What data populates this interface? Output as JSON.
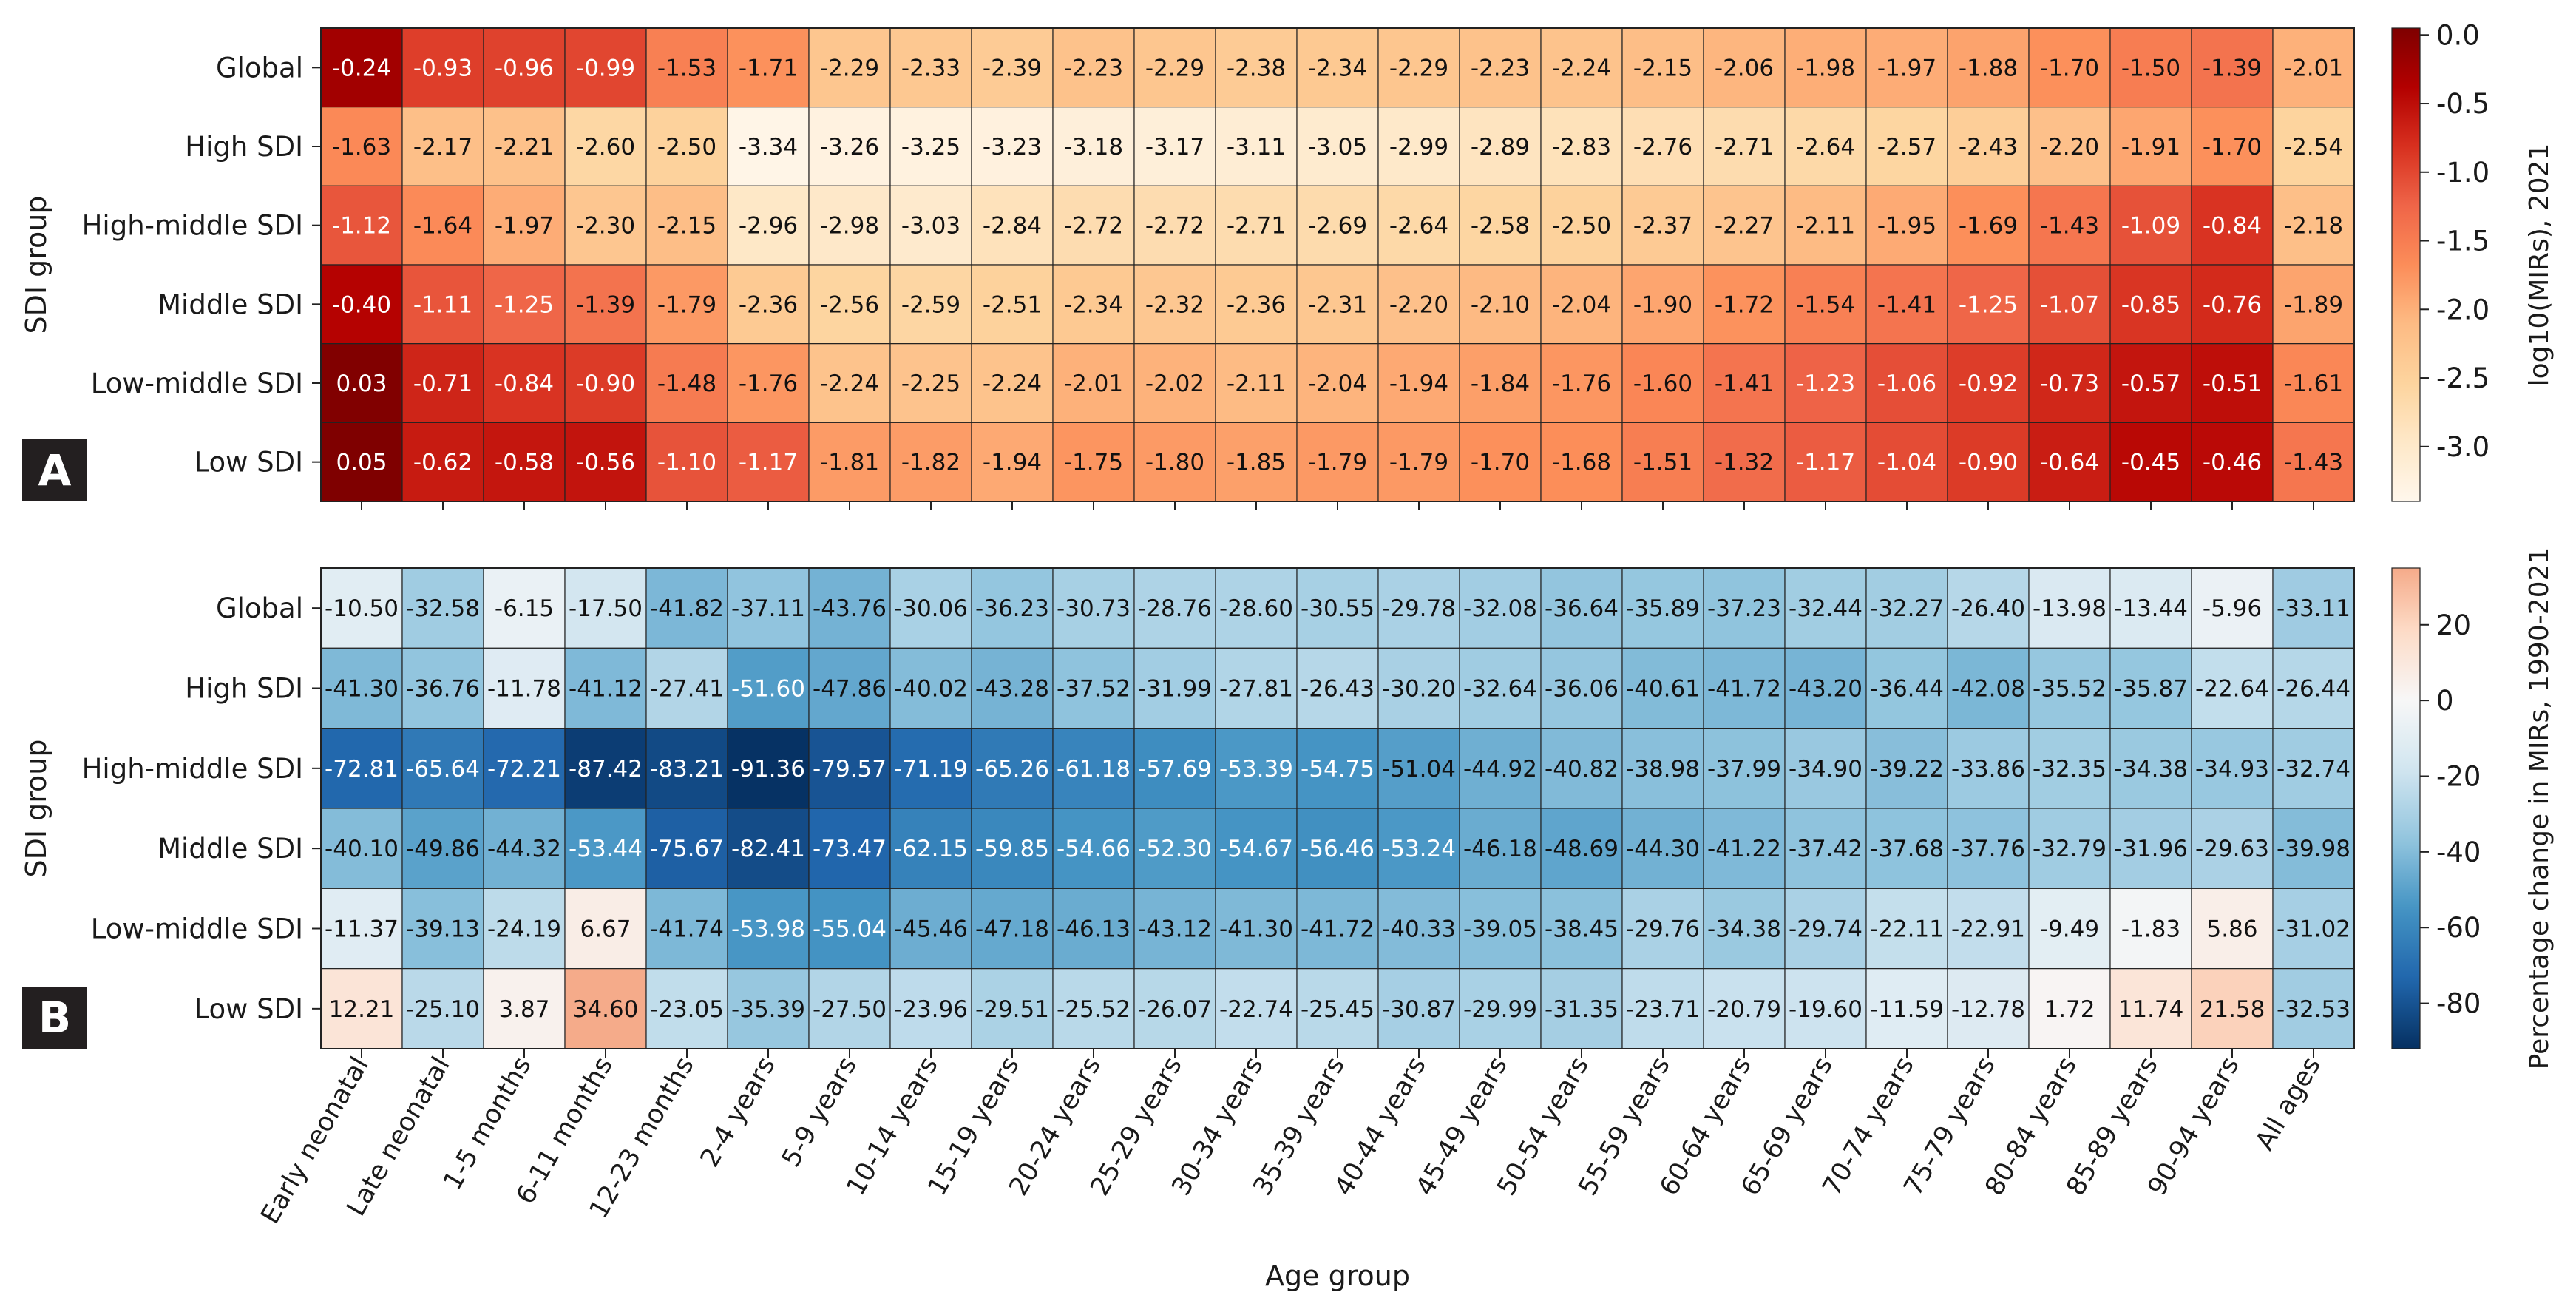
{
  "figure": {
    "xlabel": "Age group",
    "ylabel": "SDI group",
    "row_labels": [
      "Global",
      "High SDI",
      "High-middle SDI",
      "Middle SDI",
      "Low-middle SDI",
      "Low SDI"
    ],
    "col_labels": [
      "Early neonatal",
      "Late neonatal",
      "1-5 months",
      "6-11 months",
      "12-23 months",
      "2-4 years",
      "5-9 years",
      "10-14 years",
      "15-19 years",
      "20-24 years",
      "25-29 years",
      "30-34 years",
      "35-39 years",
      "40-44 years",
      "45-49 years",
      "50-54 years",
      "55-59 years",
      "60-64 years",
      "65-69 years",
      "70-74 years",
      "75-79 years",
      "80-84 years",
      "85-89 years",
      "90-94 years",
      "All ages"
    ]
  },
  "chart_data": [
    {
      "type": "heatmap",
      "panel_label": "A",
      "colorbar_label": "log10(MIRs), 2021",
      "colormap": "OrRd",
      "colorbar_ticks": [
        "0.0",
        "-0.5",
        "-1.0",
        "-1.5",
        "-2.0",
        "-2.5",
        "-3.0"
      ],
      "vmin": -3.4,
      "vmax": 0.05,
      "values": [
        [
          "-0.24",
          "-0.93",
          "-0.96",
          "-0.99",
          "-1.53",
          "-1.71",
          "-2.29",
          "-2.33",
          "-2.39",
          "-2.23",
          "-2.29",
          "-2.38",
          "-2.34",
          "-2.29",
          "-2.23",
          "-2.24",
          "-2.15",
          "-2.06",
          "-1.98",
          "-1.97",
          "-1.88",
          "-1.70",
          "-1.50",
          "-1.39",
          "-2.01"
        ],
        [
          "-1.63",
          "-2.17",
          "-2.21",
          "-2.60",
          "-2.50",
          "-3.34",
          "-3.26",
          "-3.25",
          "-3.23",
          "-3.18",
          "-3.17",
          "-3.11",
          "-3.05",
          "-2.99",
          "-2.89",
          "-2.83",
          "-2.76",
          "-2.71",
          "-2.64",
          "-2.57",
          "-2.43",
          "-2.20",
          "-1.91",
          "-1.70",
          "-2.54"
        ],
        [
          "-1.12",
          "-1.64",
          "-1.97",
          "-2.30",
          "-2.15",
          "-2.96",
          "-2.98",
          "-3.03",
          "-2.84",
          "-2.72",
          "-2.72",
          "-2.71",
          "-2.69",
          "-2.64",
          "-2.58",
          "-2.50",
          "-2.37",
          "-2.27",
          "-2.11",
          "-1.95",
          "-1.69",
          "-1.43",
          "-1.09",
          "-0.84",
          "-2.18"
        ],
        [
          "-0.40",
          "-1.11",
          "-1.25",
          "-1.39",
          "-1.79",
          "-2.36",
          "-2.56",
          "-2.59",
          "-2.51",
          "-2.34",
          "-2.32",
          "-2.36",
          "-2.31",
          "-2.20",
          "-2.10",
          "-2.04",
          "-1.90",
          "-1.72",
          "-1.54",
          "-1.41",
          "-1.25",
          "-1.07",
          "-0.85",
          "-0.76",
          "-1.89"
        ],
        [
          "0.03",
          "-0.71",
          "-0.84",
          "-0.90",
          "-1.48",
          "-1.76",
          "-2.24",
          "-2.25",
          "-2.24",
          "-2.01",
          "-2.02",
          "-2.11",
          "-2.04",
          "-1.94",
          "-1.84",
          "-1.76",
          "-1.60",
          "-1.41",
          "-1.23",
          "-1.06",
          "-0.92",
          "-0.73",
          "-0.57",
          "-0.51",
          "-1.61"
        ],
        [
          "0.05",
          "-0.62",
          "-0.58",
          "-0.56",
          "-1.10",
          "-1.17",
          "-1.81",
          "-1.82",
          "-1.94",
          "-1.75",
          "-1.80",
          "-1.85",
          "-1.79",
          "-1.79",
          "-1.70",
          "-1.68",
          "-1.51",
          "-1.32",
          "-1.17",
          "-1.04",
          "-0.90",
          "-0.64",
          "-0.45",
          "-0.46",
          "-1.43"
        ]
      ]
    },
    {
      "type": "heatmap",
      "panel_label": "B",
      "colorbar_label": "Percentage change in MIRs, 1990-2021",
      "colormap": "RdBu_r",
      "colorbar_ticks": [
        "20",
        "0",
        "-20",
        "-40",
        "-60",
        "-80"
      ],
      "vmin": -92,
      "vmax": 35,
      "center": 0,
      "values": [
        [
          "-10.50",
          "-32.58",
          "-6.15",
          "-17.50",
          "-41.82",
          "-37.11",
          "-43.76",
          "-30.06",
          "-36.23",
          "-30.73",
          "-28.76",
          "-28.60",
          "-30.55",
          "-29.78",
          "-32.08",
          "-36.64",
          "-35.89",
          "-37.23",
          "-32.44",
          "-32.27",
          "-26.40",
          "-13.98",
          "-13.44",
          "-5.96",
          "-33.11"
        ],
        [
          "-41.30",
          "-36.76",
          "-11.78",
          "-41.12",
          "-27.41",
          "-51.60",
          "-47.86",
          "-40.02",
          "-43.28",
          "-37.52",
          "-31.99",
          "-27.81",
          "-26.43",
          "-30.20",
          "-32.64",
          "-36.06",
          "-40.61",
          "-41.72",
          "-43.20",
          "-36.44",
          "-42.08",
          "-35.52",
          "-35.87",
          "-22.64",
          "-26.44"
        ],
        [
          "-72.81",
          "-65.64",
          "-72.21",
          "-87.42",
          "-83.21",
          "-91.36",
          "-79.57",
          "-71.19",
          "-65.26",
          "-61.18",
          "-57.69",
          "-53.39",
          "-54.75",
          "-51.04",
          "-44.92",
          "-40.82",
          "-38.98",
          "-37.99",
          "-34.90",
          "-39.22",
          "-33.86",
          "-32.35",
          "-34.38",
          "-34.93",
          "-32.74"
        ],
        [
          "-40.10",
          "-49.86",
          "-44.32",
          "-53.44",
          "-75.67",
          "-82.41",
          "-73.47",
          "-62.15",
          "-59.85",
          "-54.66",
          "-52.30",
          "-54.67",
          "-56.46",
          "-53.24",
          "-46.18",
          "-48.69",
          "-44.30",
          "-41.22",
          "-37.42",
          "-37.68",
          "-37.76",
          "-32.79",
          "-31.96",
          "-29.63",
          "-39.98"
        ],
        [
          "-11.37",
          "-39.13",
          "-24.19",
          "6.67",
          "-41.74",
          "-53.98",
          "-55.04",
          "-45.46",
          "-47.18",
          "-46.13",
          "-43.12",
          "-41.30",
          "-41.72",
          "-40.33",
          "-39.05",
          "-38.45",
          "-29.76",
          "-34.38",
          "-29.74",
          "-22.11",
          "-22.91",
          "-9.49",
          "-1.83",
          "5.86",
          "-31.02"
        ],
        [
          "12.21",
          "-25.10",
          "3.87",
          "34.60",
          "-23.05",
          "-35.39",
          "-27.50",
          "-23.96",
          "-29.51",
          "-25.52",
          "-26.07",
          "-22.74",
          "-25.45",
          "-30.87",
          "-29.99",
          "-31.35",
          "-23.71",
          "-20.79",
          "-19.60",
          "-11.59",
          "-12.78",
          "1.72",
          "11.74",
          "21.58",
          "-32.53"
        ]
      ]
    }
  ]
}
